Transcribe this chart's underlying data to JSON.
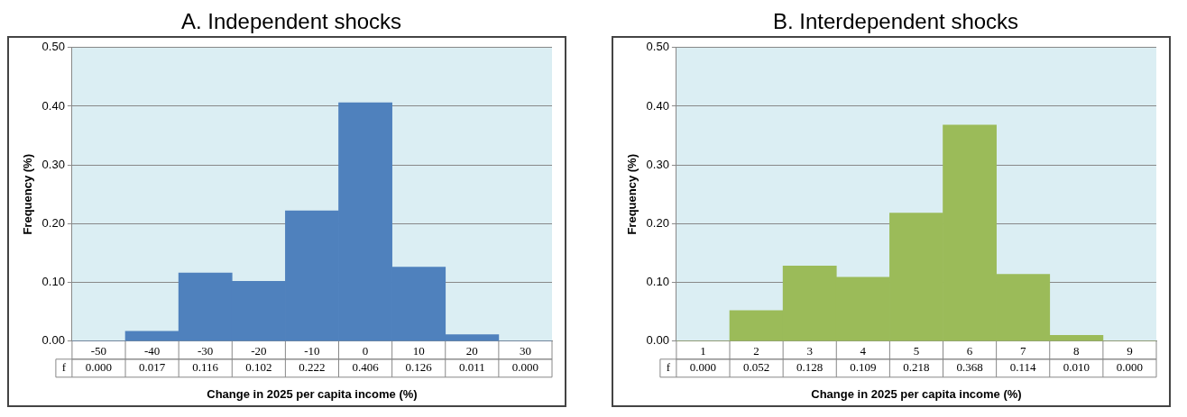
{
  "chart_data": [
    {
      "type": "bar",
      "title": "A. Independent shocks",
      "xlabel": "Change in 2025 per capita income (%)",
      "ylabel": "Frequency (%)",
      "categories": [
        "-50",
        "-40",
        "-30",
        "-20",
        "-10",
        "0",
        "10",
        "20",
        "30"
      ],
      "series": [
        {
          "color": "#4f81bd",
          "values": [
            0.0,
            0.017,
            0.116,
            0.102,
            0.222,
            0.406,
            0.126,
            0.011,
            0.0
          ],
          "value_labels": [
            "0.000",
            "0.017",
            "0.116",
            "0.102",
            "0.222",
            "0.406",
            "0.126",
            "0.011",
            "0.000"
          ]
        }
      ],
      "ylim": [
        0,
        0.5
      ],
      "yticks": [
        {
          "value": 0,
          "label": "0.00"
        },
        {
          "value": 0.1,
          "label": "0.10"
        },
        {
          "value": 0.2,
          "label": "0.20"
        },
        {
          "value": 0.3,
          "label": "0.30"
        },
        {
          "value": 0.4,
          "label": "0.40"
        },
        {
          "value": 0.5,
          "label": "0.50"
        }
      ],
      "grid": "y",
      "legend": false,
      "annotations": [
        "f"
      ]
    },
    {
      "type": "bar",
      "title": "B. Interdependent shocks",
      "xlabel": "Change in 2025 per capita income (%)",
      "ylabel": "Frequency (%)",
      "categories": [
        "1",
        "2",
        "3",
        "4",
        "5",
        "6",
        "7",
        "8",
        "9"
      ],
      "series": [
        {
          "color": "#9bbb59",
          "values": [
            0.0,
            0.052,
            0.128,
            0.109,
            0.218,
            0.368,
            0.114,
            0.01,
            0.0
          ],
          "value_labels": [
            "0.000",
            "0.052",
            "0.128",
            "0.109",
            "0.218",
            "0.368",
            "0.114",
            "0.010",
            "0.000"
          ]
        }
      ],
      "ylim": [
        0,
        0.5
      ],
      "yticks": [
        {
          "value": 0,
          "label": "0.00"
        },
        {
          "value": 0.1,
          "label": "0.10"
        },
        {
          "value": 0.2,
          "label": "0.20"
        },
        {
          "value": 0.3,
          "label": "0.30"
        },
        {
          "value": 0.4,
          "label": "0.40"
        },
        {
          "value": 0.5,
          "label": "0.50"
        }
      ],
      "grid": "y",
      "legend": false,
      "annotations": [
        "f"
      ]
    }
  ]
}
